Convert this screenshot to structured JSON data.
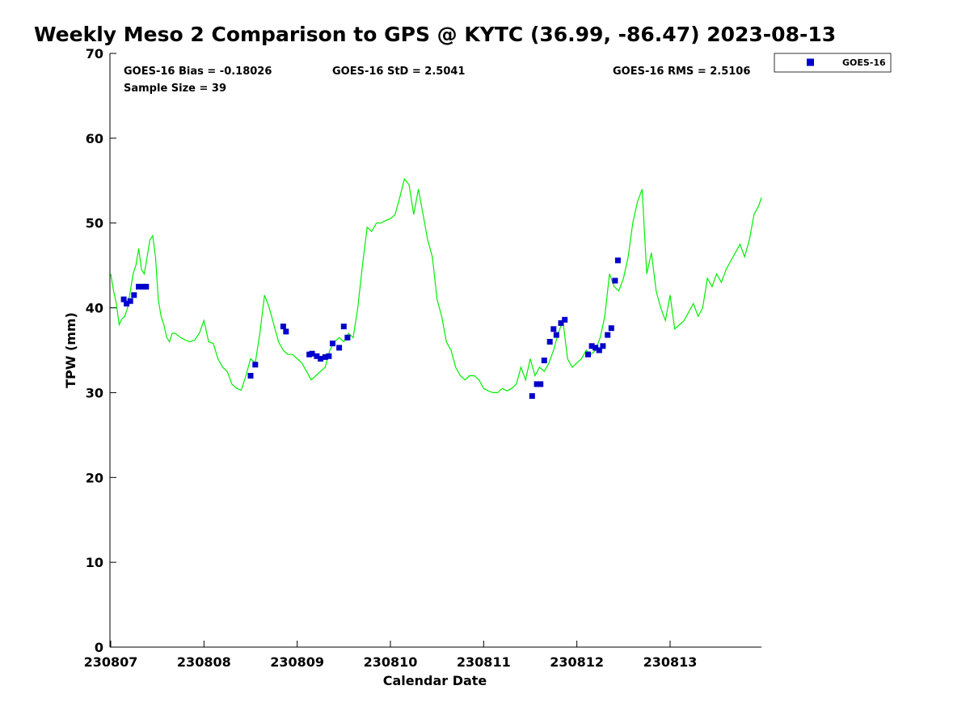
{
  "title": "Weekly Meso 2 Comparison to GPS @ KYTC (36.99, -86.47) 2023-08-13",
  "stats": {
    "bias": "GOES-16 Bias = -0.18026",
    "std": "GOES-16 StD = 2.5041",
    "rms": "GOES-16 RMS = 2.5106",
    "sample": "Sample Size = 39"
  },
  "legend": {
    "label": "GOES-16"
  },
  "colors": {
    "gps_line": "#00ee00",
    "goes_marker": "#0000cc"
  },
  "chart_data": {
    "type": "scatter",
    "xlabel": "Calendar Date",
    "ylabel": "TPW (mm)",
    "xlim": [
      0,
      7
    ],
    "ylim": [
      0,
      70
    ],
    "x_ticks": [
      {
        "value": 0,
        "label": "230807"
      },
      {
        "value": 1,
        "label": "230808"
      },
      {
        "value": 2,
        "label": "230809"
      },
      {
        "value": 3,
        "label": "230810"
      },
      {
        "value": 4,
        "label": "230811"
      },
      {
        "value": 5,
        "label": "230812"
      },
      {
        "value": 6,
        "label": "230813"
      }
    ],
    "y_ticks": [
      0,
      10,
      20,
      30,
      40,
      50,
      60,
      70
    ],
    "series": [
      {
        "type": "line",
        "x": [
          0.0,
          0.03,
          0.06,
          0.09,
          0.12,
          0.15,
          0.18,
          0.21,
          0.24,
          0.27,
          0.3,
          0.33,
          0.36,
          0.39,
          0.42,
          0.45,
          0.48,
          0.51,
          0.54,
          0.57,
          0.6,
          0.63,
          0.66,
          0.69,
          0.75,
          0.8,
          0.85,
          0.9,
          0.95,
          1.0,
          1.05,
          1.1,
          1.15,
          1.2,
          1.25,
          1.3,
          1.35,
          1.4,
          1.45,
          1.5,
          1.55,
          1.6,
          1.65,
          1.7,
          1.75,
          1.8,
          1.85,
          1.9,
          1.95,
          2.0,
          2.05,
          2.1,
          2.15,
          2.2,
          2.25,
          2.3,
          2.35,
          2.4,
          2.45,
          2.5,
          2.55,
          2.6,
          2.65,
          2.7,
          2.75,
          2.8,
          2.85,
          2.9,
          2.95,
          3.0,
          3.05,
          3.1,
          3.15,
          3.2,
          3.25,
          3.3,
          3.35,
          3.4,
          3.45,
          3.5,
          3.55,
          3.6,
          3.65,
          3.7,
          3.75,
          3.8,
          3.85,
          3.9,
          3.95,
          4.0,
          4.05,
          4.1,
          4.15,
          4.2,
          4.25,
          4.3,
          4.35,
          4.4,
          4.45,
          4.5,
          4.55,
          4.6,
          4.65,
          4.7,
          4.75,
          4.8,
          4.85,
          4.9,
          4.95,
          5.0,
          5.05,
          5.1,
          5.15,
          5.2,
          5.25,
          5.3,
          5.35,
          5.4,
          5.45,
          5.5,
          5.55,
          5.6,
          5.65,
          5.7,
          5.75,
          5.8,
          5.85,
          5.9,
          5.95,
          6.0,
          6.05,
          6.1,
          6.15,
          6.2,
          6.25,
          6.3,
          6.35,
          6.4,
          6.45,
          6.5,
          6.55,
          6.6,
          6.65,
          6.7,
          6.75,
          6.8,
          6.85,
          6.9,
          6.95,
          6.98
        ],
        "y": [
          44.0,
          42.0,
          40.5,
          38.0,
          38.7,
          39.0,
          40.0,
          42.0,
          44.0,
          45.0,
          47.0,
          44.5,
          44.0,
          46.0,
          48.0,
          48.5,
          46.0,
          41.0,
          39.0,
          38.0,
          36.5,
          36.0,
          37.0,
          37.0,
          36.5,
          36.2,
          36.0,
          36.2,
          37.0,
          38.5,
          36.0,
          35.8,
          34.0,
          33.0,
          32.5,
          31.0,
          30.5,
          30.3,
          32.0,
          34.0,
          33.5,
          37.0,
          41.5,
          40.0,
          38.0,
          36.0,
          35.0,
          34.5,
          34.5,
          34.0,
          33.5,
          32.5,
          31.5,
          32.0,
          32.5,
          33.0,
          35.0,
          36.0,
          36.5,
          36.0,
          37.0,
          36.5,
          40.0,
          45.0,
          49.5,
          49.0,
          50.0,
          50.0,
          50.3,
          50.5,
          51.0,
          53.0,
          55.2,
          54.5,
          51.0,
          54.0,
          51.0,
          48.0,
          46.0,
          41.0,
          39.0,
          36.0,
          35.0,
          33.0,
          32.0,
          31.5,
          32.0,
          32.0,
          31.5,
          30.5,
          30.2,
          30.0,
          30.0,
          30.5,
          30.2,
          30.5,
          31.0,
          33.0,
          31.5,
          34.0,
          32.0,
          33.0,
          32.5,
          33.5,
          35.0,
          37.0,
          38.5,
          34.0,
          33.0,
          33.5,
          34.0,
          35.0,
          34.5,
          35.0,
          36.5,
          39.0,
          44.0,
          42.5,
          42.0,
          43.5,
          46.0,
          50.0,
          52.5,
          54.0,
          44.0,
          46.5,
          42.0,
          40.0,
          38.5,
          41.5,
          37.5,
          38.0,
          38.5,
          39.5,
          40.5,
          39.0,
          40.0,
          43.5,
          42.5,
          44.0,
          43.0,
          44.5,
          45.5,
          46.5,
          47.5,
          46.0,
          48.0,
          51.0,
          52.0,
          53.0
        ]
      },
      {
        "name": "GOES-16",
        "type": "scatter",
        "x": [
          0.14,
          0.17,
          0.21,
          0.25,
          0.3,
          0.34,
          0.38,
          1.5,
          1.55,
          1.85,
          1.88,
          2.13,
          2.16,
          2.21,
          2.25,
          2.3,
          2.34,
          2.38,
          2.45,
          2.5,
          2.54,
          4.52,
          4.57,
          4.61,
          4.65,
          4.71,
          4.75,
          4.78,
          4.83,
          4.87,
          5.12,
          5.16,
          5.2,
          5.24,
          5.28,
          5.33,
          5.37,
          5.41,
          5.44
        ],
        "y": [
          41.0,
          40.5,
          40.8,
          41.5,
          42.5,
          42.5,
          42.5,
          32.0,
          33.3,
          37.8,
          37.2,
          34.5,
          34.6,
          34.3,
          34.0,
          34.2,
          34.3,
          35.8,
          35.3,
          37.8,
          36.5,
          29.6,
          31.0,
          31.0,
          33.8,
          36.0,
          37.5,
          36.8,
          38.2,
          38.6,
          34.5,
          35.5,
          35.3,
          35.0,
          35.5,
          36.8,
          37.6,
          43.2,
          45.6
        ]
      }
    ]
  }
}
